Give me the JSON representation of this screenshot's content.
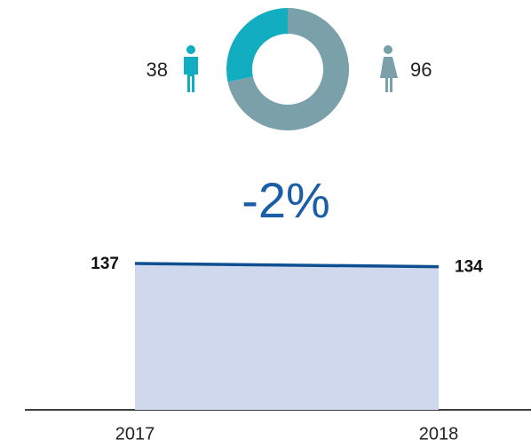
{
  "chart_data": [
    {
      "type": "donut",
      "values": [
        38,
        96
      ],
      "colors": [
        "#12adc1",
        "#7aa0a9"
      ]
    },
    {
      "type": "area",
      "title": "-2%",
      "x": [
        2017,
        2018
      ],
      "values": [
        137,
        134
      ],
      "xlim": [
        2017,
        2018
      ],
      "xticks": [
        2017,
        2018
      ],
      "ylim": [
        0,
        140
      ],
      "line_color": "#0d4f91",
      "fill_color": "#cfd8ec"
    }
  ]
}
